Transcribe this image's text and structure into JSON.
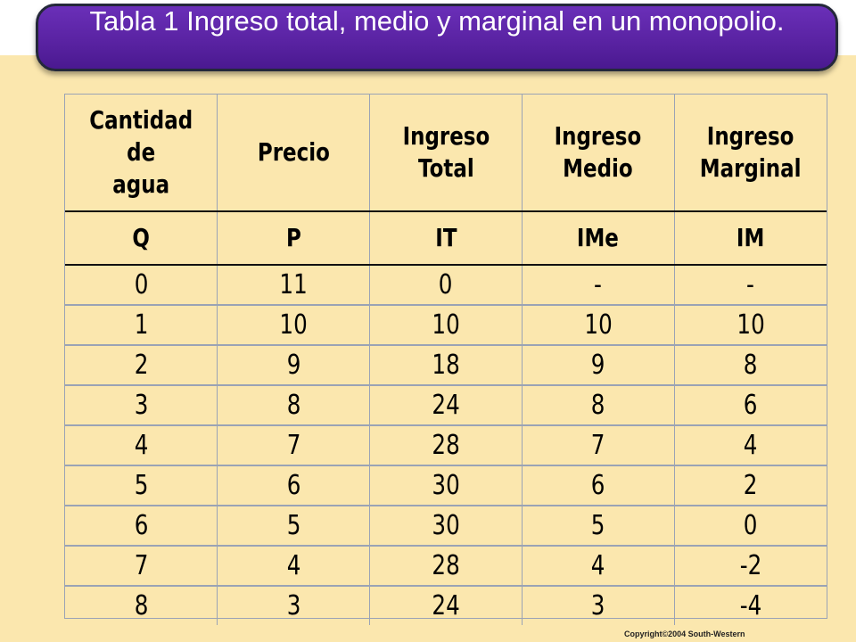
{
  "title": "Tabla 1 Ingreso total, medio y marginal en un monopolio.",
  "table": {
    "headers": [
      {
        "line1": "Cantidad de",
        "line2": "agua"
      },
      {
        "line1": "Precio",
        "line2": ""
      },
      {
        "line1": "Ingreso",
        "line2": "Total"
      },
      {
        "line1": "Ingreso",
        "line2": "Medio"
      },
      {
        "line1": "Ingreso",
        "line2": "Marginal"
      }
    ],
    "symbols": [
      "Q",
      "P",
      "IT",
      "IMe",
      "IM"
    ],
    "rows": [
      [
        "0",
        "11",
        "0",
        "-",
        "-"
      ],
      [
        "1",
        "10",
        "10",
        "10",
        "10"
      ],
      [
        "2",
        "9",
        "18",
        "9",
        "8"
      ],
      [
        "3",
        "8",
        "24",
        "8",
        "6"
      ],
      [
        "4",
        "7",
        "28",
        "7",
        "4"
      ],
      [
        "5",
        "6",
        "30",
        "6",
        "2"
      ],
      [
        "6",
        "5",
        "30",
        "5",
        "0"
      ],
      [
        "7",
        "4",
        "28",
        "4",
        "-2"
      ],
      [
        "8",
        "3",
        "24",
        "3",
        "-4"
      ]
    ]
  },
  "copyright": "Copyright©2004  South-Western"
}
